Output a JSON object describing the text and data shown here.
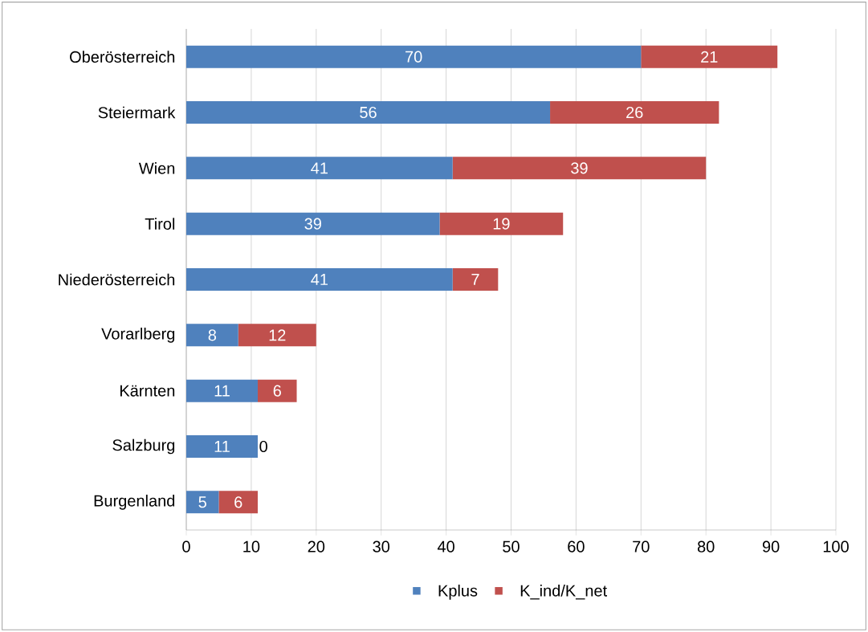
{
  "chart_data": {
    "type": "bar",
    "orientation": "horizontal",
    "stacked": true,
    "categories": [
      "Oberösterreich",
      "Steiermark",
      "Wien",
      "Tirol",
      "Niederösterreich",
      "Vorarlberg",
      "Kärnten",
      "Salzburg",
      "Burgenland"
    ],
    "series": [
      {
        "name": "Kplus",
        "color": "#4f81bd",
        "values": [
          70,
          56,
          41,
          39,
          41,
          8,
          11,
          11,
          5
        ],
        "value_labels": [
          "70",
          "56",
          "41",
          "39",
          "41",
          "8",
          "11",
          "11",
          "5"
        ]
      },
      {
        "name": "K_ind/K_net",
        "color": "#c0504d",
        "values": [
          21,
          26,
          39,
          19,
          7,
          12,
          6,
          0,
          6
        ],
        "value_labels": [
          "21",
          "26",
          "39",
          "19",
          "7",
          "12",
          "6",
          "0",
          "6"
        ]
      }
    ],
    "xlim": [
      0,
      100
    ],
    "xticks": [
      0,
      10,
      20,
      30,
      40,
      50,
      60,
      70,
      80,
      90,
      100
    ],
    "grid": "x",
    "legend": "bottom"
  }
}
